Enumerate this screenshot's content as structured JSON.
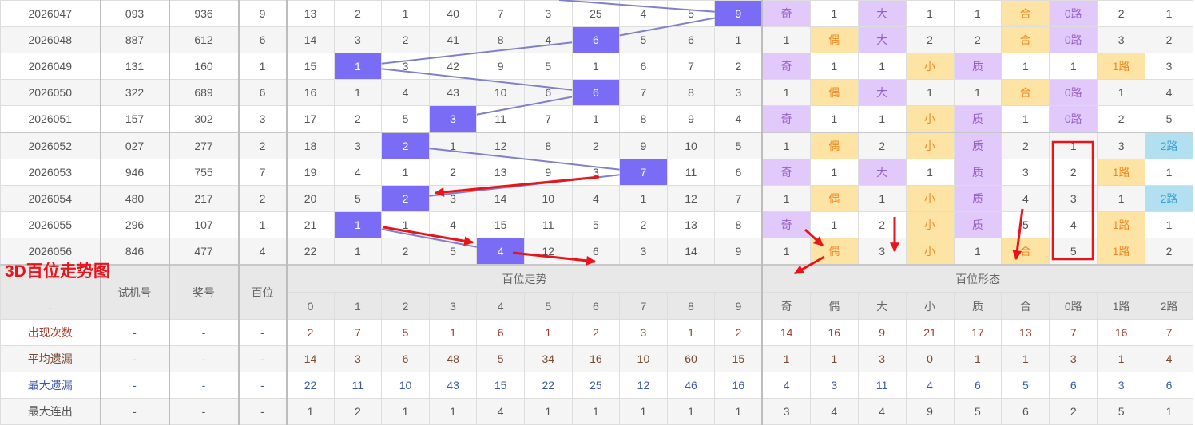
{
  "overlay_title": "3D百位走势图",
  "colors": {
    "hit": "#7b6cf6",
    "line": "#8080c8",
    "purple_bg": "#e2c9fb",
    "yellow_bg": "#fde4a4",
    "blue_bg": "#b2e0f0",
    "annotation": "#e8141a"
  },
  "rows": [
    {
      "issue": "2026047",
      "test": "093",
      "draw": "936",
      "hundreds": "9",
      "trend": [
        "13",
        "2",
        "1",
        "40",
        "7",
        "3",
        "25",
        "4",
        "5",
        "9"
      ],
      "form": [
        [
          "奇",
          "p"
        ],
        [
          "1",
          ""
        ],
        [
          "大",
          "p"
        ],
        [
          "1",
          ""
        ],
        [
          "1",
          ""
        ],
        [
          "合",
          "y"
        ],
        [
          "0路",
          "p"
        ],
        [
          "2",
          ""
        ],
        [
          "1",
          ""
        ]
      ]
    },
    {
      "issue": "2026048",
      "test": "887",
      "draw": "612",
      "hundreds": "6",
      "trend": [
        "14",
        "3",
        "2",
        "41",
        "8",
        "4",
        "6",
        "5",
        "6",
        "1"
      ],
      "form": [
        [
          "1",
          ""
        ],
        [
          "偶",
          "y"
        ],
        [
          "大",
          "p"
        ],
        [
          "2",
          ""
        ],
        [
          "2",
          ""
        ],
        [
          "合",
          "y"
        ],
        [
          "0路",
          "p"
        ],
        [
          "3",
          ""
        ],
        [
          "2",
          ""
        ]
      ]
    },
    {
      "issue": "2026049",
      "test": "131",
      "draw": "160",
      "hundreds": "1",
      "trend": [
        "15",
        "1",
        "3",
        "42",
        "9",
        "5",
        "1",
        "6",
        "7",
        "2"
      ],
      "form": [
        [
          "奇",
          "p"
        ],
        [
          "1",
          ""
        ],
        [
          "1",
          ""
        ],
        [
          "小",
          "y"
        ],
        [
          "质",
          "p"
        ],
        [
          "1",
          ""
        ],
        [
          "1",
          ""
        ],
        [
          "1路",
          "y"
        ],
        [
          "3",
          ""
        ]
      ]
    },
    {
      "issue": "2026050",
      "test": "322",
      "draw": "689",
      "hundreds": "6",
      "trend": [
        "16",
        "1",
        "4",
        "43",
        "10",
        "6",
        "6",
        "7",
        "8",
        "3"
      ],
      "form": [
        [
          "1",
          ""
        ],
        [
          "偶",
          "y"
        ],
        [
          "大",
          "p"
        ],
        [
          "1",
          ""
        ],
        [
          "1",
          ""
        ],
        [
          "合",
          "y"
        ],
        [
          "0路",
          "p"
        ],
        [
          "1",
          ""
        ],
        [
          "4",
          ""
        ]
      ]
    },
    {
      "issue": "2026051",
      "test": "157",
      "draw": "302",
      "hundreds": "3",
      "trend": [
        "17",
        "2",
        "5",
        "3",
        "11",
        "7",
        "1",
        "8",
        "9",
        "4"
      ],
      "form": [
        [
          "奇",
          "p"
        ],
        [
          "1",
          ""
        ],
        [
          "1",
          ""
        ],
        [
          "小",
          "y"
        ],
        [
          "质",
          "p"
        ],
        [
          "1",
          ""
        ],
        [
          "0路",
          "p"
        ],
        [
          "2",
          ""
        ],
        [
          "5",
          ""
        ]
      ]
    },
    {
      "issue": "2026052",
      "test": "027",
      "draw": "277",
      "hundreds": "2",
      "trend": [
        "18",
        "3",
        "2",
        "1",
        "12",
        "8",
        "2",
        "9",
        "10",
        "5"
      ],
      "form": [
        [
          "1",
          ""
        ],
        [
          "偶",
          "y"
        ],
        [
          "2",
          ""
        ],
        [
          "小",
          "y"
        ],
        [
          "质",
          "p"
        ],
        [
          "2",
          ""
        ],
        [
          "1",
          ""
        ],
        [
          "3",
          ""
        ],
        [
          "2路",
          "b"
        ]
      ]
    },
    {
      "issue": "2026053",
      "test": "946",
      "draw": "755",
      "hundreds": "7",
      "trend": [
        "19",
        "4",
        "1",
        "2",
        "13",
        "9",
        "3",
        "7",
        "11",
        "6"
      ],
      "form": [
        [
          "奇",
          "p"
        ],
        [
          "1",
          ""
        ],
        [
          "大",
          "p"
        ],
        [
          "1",
          ""
        ],
        [
          "质",
          "p"
        ],
        [
          "3",
          ""
        ],
        [
          "2",
          ""
        ],
        [
          "1路",
          "y"
        ],
        [
          "1",
          ""
        ]
      ]
    },
    {
      "issue": "2026054",
      "test": "480",
      "draw": "217",
      "hundreds": "2",
      "trend": [
        "20",
        "5",
        "2",
        "3",
        "14",
        "10",
        "4",
        "1",
        "12",
        "7"
      ],
      "form": [
        [
          "1",
          ""
        ],
        [
          "偶",
          "y"
        ],
        [
          "1",
          ""
        ],
        [
          "小",
          "y"
        ],
        [
          "质",
          "p"
        ],
        [
          "4",
          ""
        ],
        [
          "3",
          ""
        ],
        [
          "1",
          ""
        ],
        [
          "2路",
          "b"
        ]
      ]
    },
    {
      "issue": "2026055",
      "test": "296",
      "draw": "107",
      "hundreds": "1",
      "trend": [
        "21",
        "1",
        "1",
        "4",
        "15",
        "11",
        "5",
        "2",
        "13",
        "8"
      ],
      "form": [
        [
          "奇",
          "p"
        ],
        [
          "1",
          ""
        ],
        [
          "2",
          ""
        ],
        [
          "小",
          "y"
        ],
        [
          "质",
          "p"
        ],
        [
          "5",
          ""
        ],
        [
          "4",
          ""
        ],
        [
          "1路",
          "y"
        ],
        [
          "1",
          ""
        ]
      ]
    },
    {
      "issue": "2026056",
      "test": "846",
      "draw": "477",
      "hundreds": "4",
      "trend": [
        "22",
        "1",
        "2",
        "5",
        "4",
        "12",
        "6",
        "3",
        "14",
        "9"
      ],
      "form": [
        [
          "1",
          ""
        ],
        [
          "偶",
          "y"
        ],
        [
          "3",
          ""
        ],
        [
          "小",
          "y"
        ],
        [
          "1",
          ""
        ],
        [
          "合",
          "y"
        ],
        [
          "5",
          ""
        ],
        [
          "1路",
          "y"
        ],
        [
          "2",
          ""
        ]
      ]
    }
  ],
  "header": {
    "issue": "-",
    "test": "试机号",
    "draw": "奖号",
    "hundreds": "百位",
    "trend_group": "百位走势",
    "form_group": "百位形态",
    "trend_cols": [
      "0",
      "1",
      "2",
      "3",
      "4",
      "5",
      "6",
      "7",
      "8",
      "9"
    ],
    "form_cols": [
      "奇",
      "偶",
      "大",
      "小",
      "质",
      "合",
      "0路",
      "1路",
      "2路"
    ]
  },
  "stats": [
    {
      "label": "出现次数",
      "test": "-",
      "draw": "-",
      "hundreds": "-",
      "trend": [
        "2",
        "7",
        "5",
        "1",
        "6",
        "1",
        "2",
        "3",
        "1",
        "2"
      ],
      "form": [
        "14",
        "16",
        "9",
        "21",
        "17",
        "13",
        "7",
        "16",
        "7"
      ]
    },
    {
      "label": "平均遗漏",
      "test": "-",
      "draw": "-",
      "hundreds": "-",
      "trend": [
        "14",
        "3",
        "6",
        "48",
        "5",
        "34",
        "16",
        "10",
        "60",
        "15"
      ],
      "form": [
        "1",
        "1",
        "3",
        "0",
        "1",
        "1",
        "3",
        "1",
        "4"
      ]
    },
    {
      "label": "最大遗漏",
      "test": "-",
      "draw": "-",
      "hundreds": "-",
      "trend": [
        "22",
        "11",
        "10",
        "43",
        "15",
        "22",
        "25",
        "12",
        "46",
        "16"
      ],
      "form": [
        "4",
        "3",
        "11",
        "4",
        "6",
        "5",
        "6",
        "3",
        "6"
      ]
    },
    {
      "label": "最大连出",
      "test": "-",
      "draw": "-",
      "hundreds": "-",
      "trend": [
        "1",
        "2",
        "1",
        "1",
        "4",
        "1",
        "1",
        "1",
        "1",
        "1"
      ],
      "form": [
        "3",
        "4",
        "4",
        "9",
        "5",
        "6",
        "2",
        "5",
        "1"
      ]
    }
  ]
}
